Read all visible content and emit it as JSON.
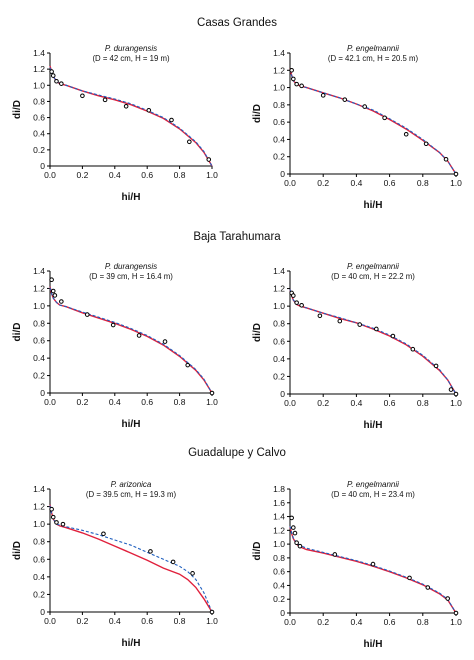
{
  "figure": {
    "sections": [
      "Casas Grandes",
      "Baja Tarahumara",
      "Guadalupe y Calvo"
    ],
    "colors": {
      "model_solid": "#e0203c",
      "model_dashed": "#1f5fbf",
      "observed": "#000000"
    }
  },
  "chart_data": [
    {
      "type": "line",
      "section": "Casas Grandes",
      "species": "P. durangensis",
      "params": "(D = 42 cm, H = 19 m)",
      "xlabel": "hi/H",
      "ylabel": "di/D",
      "xlim": [
        0,
        1
      ],
      "ylim": [
        0,
        1.4
      ],
      "xticks": [
        0.0,
        0.2,
        0.4,
        0.6,
        0.8,
        1.0
      ],
      "yticks": [
        0,
        0.2,
        0.4,
        0.6,
        0.8,
        1.0,
        1.2,
        1.4
      ],
      "grid": false,
      "observed": {
        "x": [
          0.01,
          0.02,
          0.04,
          0.07,
          0.2,
          0.34,
          0.47,
          0.61,
          0.75,
          0.86,
          0.98
        ],
        "y": [
          1.17,
          1.12,
          1.05,
          1.02,
          0.87,
          0.82,
          0.74,
          0.69,
          0.57,
          0.3,
          0.08
        ]
      },
      "series": [
        {
          "style": "solid",
          "x": [
            0,
            0.01,
            0.02,
            0.04,
            0.06,
            0.1,
            0.2,
            0.3,
            0.4,
            0.5,
            0.6,
            0.7,
            0.8,
            0.9,
            0.95,
            1.0
          ],
          "y": [
            1.24,
            1.17,
            1.11,
            1.05,
            1.02,
            1.0,
            0.93,
            0.87,
            0.82,
            0.76,
            0.68,
            0.59,
            0.46,
            0.29,
            0.17,
            0.0
          ]
        },
        {
          "style": "dashed",
          "x": [
            0,
            0.01,
            0.02,
            0.04,
            0.06,
            0.1,
            0.2,
            0.3,
            0.4,
            0.5,
            0.6,
            0.7,
            0.8,
            0.9,
            0.95,
            1.0
          ],
          "y": [
            1.22,
            1.16,
            1.11,
            1.05,
            1.02,
            1.0,
            0.93,
            0.88,
            0.83,
            0.77,
            0.69,
            0.6,
            0.47,
            0.3,
            0.18,
            0.0
          ]
        }
      ]
    },
    {
      "type": "line",
      "section": "Casas Grandes",
      "species": "P. engelmannii",
      "params": "(D = 42.1 cm, H = 20.5 m)",
      "xlabel": "hi/H",
      "ylabel": "di/D",
      "xlim": [
        0,
        1
      ],
      "ylim": [
        0,
        1.4
      ],
      "xticks": [
        0.0,
        0.2,
        0.4,
        0.6,
        0.8,
        1.0
      ],
      "yticks": [
        0,
        0.2,
        0.4,
        0.6,
        0.8,
        1.0,
        1.2,
        1.4
      ],
      "grid": false,
      "observed": {
        "x": [
          0.01,
          0.02,
          0.04,
          0.07,
          0.2,
          0.33,
          0.45,
          0.57,
          0.7,
          0.82,
          0.94,
          1.0
        ],
        "y": [
          1.2,
          1.1,
          1.04,
          1.02,
          0.91,
          0.86,
          0.78,
          0.65,
          0.46,
          0.35,
          0.17,
          0.0
        ]
      },
      "series": [
        {
          "style": "solid",
          "x": [
            0,
            0.01,
            0.02,
            0.04,
            0.06,
            0.1,
            0.2,
            0.3,
            0.4,
            0.5,
            0.6,
            0.7,
            0.8,
            0.9,
            0.95,
            1.0
          ],
          "y": [
            1.22,
            1.14,
            1.08,
            1.04,
            1.02,
            1.0,
            0.94,
            0.88,
            0.81,
            0.73,
            0.63,
            0.52,
            0.39,
            0.25,
            0.15,
            0.0
          ]
        },
        {
          "style": "dashed",
          "x": [
            0,
            0.01,
            0.02,
            0.04,
            0.06,
            0.1,
            0.2,
            0.3,
            0.4,
            0.5,
            0.6,
            0.7,
            0.8,
            0.9,
            0.95,
            1.0
          ],
          "y": [
            1.21,
            1.14,
            1.08,
            1.04,
            1.02,
            1.0,
            0.94,
            0.88,
            0.81,
            0.74,
            0.64,
            0.53,
            0.4,
            0.25,
            0.15,
            0.0
          ]
        }
      ]
    },
    {
      "type": "line",
      "section": "Baja Tarahumara",
      "species": "P. durangensis",
      "params": "(D = 39 cm, H = 16.4 m)",
      "xlabel": "hi/H",
      "ylabel": "di/D",
      "xlim": [
        0,
        1
      ],
      "ylim": [
        0,
        1.4
      ],
      "xticks": [
        0.0,
        0.2,
        0.4,
        0.6,
        0.8,
        1.0
      ],
      "yticks": [
        0,
        0.2,
        0.4,
        0.6,
        0.8,
        1.0,
        1.2,
        1.4
      ],
      "grid": false,
      "observed": {
        "x": [
          0.01,
          0.02,
          0.03,
          0.07,
          0.23,
          0.39,
          0.55,
          0.71,
          0.85,
          1.0
        ],
        "y": [
          1.3,
          1.17,
          1.12,
          1.05,
          0.9,
          0.78,
          0.66,
          0.59,
          0.32,
          0.0
        ]
      },
      "series": [
        {
          "style": "solid",
          "x": [
            0,
            0.01,
            0.02,
            0.04,
            0.06,
            0.1,
            0.2,
            0.3,
            0.4,
            0.5,
            0.6,
            0.7,
            0.8,
            0.9,
            0.95,
            1.0
          ],
          "y": [
            1.22,
            1.14,
            1.09,
            1.04,
            1.01,
            0.99,
            0.92,
            0.86,
            0.8,
            0.73,
            0.65,
            0.55,
            0.42,
            0.26,
            0.15,
            0.0
          ]
        },
        {
          "style": "dashed",
          "x": [
            0,
            0.01,
            0.02,
            0.04,
            0.06,
            0.1,
            0.2,
            0.3,
            0.4,
            0.5,
            0.6,
            0.7,
            0.8,
            0.9,
            0.95,
            1.0
          ],
          "y": [
            1.21,
            1.14,
            1.09,
            1.04,
            1.01,
            0.99,
            0.93,
            0.87,
            0.81,
            0.74,
            0.66,
            0.56,
            0.43,
            0.27,
            0.16,
            0.0
          ]
        }
      ]
    },
    {
      "type": "line",
      "section": "Baja Tarahumara",
      "species": "P. engelmannii",
      "params": "(D = 40 cm, H = 22.2 m)",
      "xlabel": "hi/H",
      "ylabel": "di/D",
      "xlim": [
        0,
        1
      ],
      "ylim": [
        0,
        1.4
      ],
      "xticks": [
        0.0,
        0.2,
        0.4,
        0.6,
        0.8,
        1.0
      ],
      "yticks": [
        0,
        0.2,
        0.4,
        0.6,
        0.8,
        1.0,
        1.2,
        1.4
      ],
      "grid": false,
      "observed": {
        "x": [
          0.01,
          0.02,
          0.04,
          0.07,
          0.18,
          0.3,
          0.42,
          0.52,
          0.62,
          0.74,
          0.88,
          0.97,
          1.0
        ],
        "y": [
          1.15,
          1.12,
          1.04,
          1.01,
          0.89,
          0.83,
          0.79,
          0.74,
          0.66,
          0.51,
          0.32,
          0.05,
          0.0
        ]
      },
      "series": [
        {
          "style": "solid",
          "x": [
            0,
            0.01,
            0.02,
            0.04,
            0.06,
            0.1,
            0.2,
            0.3,
            0.4,
            0.5,
            0.6,
            0.7,
            0.8,
            0.9,
            0.95,
            1.0
          ],
          "y": [
            1.19,
            1.12,
            1.07,
            1.02,
            1.0,
            0.98,
            0.92,
            0.86,
            0.81,
            0.74,
            0.66,
            0.56,
            0.43,
            0.27,
            0.16,
            0.0
          ]
        },
        {
          "style": "dashed",
          "x": [
            0,
            0.01,
            0.02,
            0.04,
            0.06,
            0.1,
            0.2,
            0.3,
            0.4,
            0.5,
            0.6,
            0.7,
            0.8,
            0.9,
            0.95,
            1.0
          ],
          "y": [
            1.19,
            1.12,
            1.07,
            1.03,
            1.0,
            0.98,
            0.92,
            0.87,
            0.81,
            0.75,
            0.67,
            0.57,
            0.44,
            0.28,
            0.16,
            0.0
          ]
        }
      ]
    },
    {
      "type": "line",
      "section": "Guadalupe y Calvo",
      "species": "P. arizonica",
      "params": "(D = 39.5 cm, H = 19.3 m)",
      "xlabel": "hi/H",
      "ylabel": "di/D",
      "xlim": [
        0,
        1
      ],
      "ylim": [
        0,
        1.4
      ],
      "xticks": [
        0.0,
        0.2,
        0.4,
        0.6,
        0.8,
        1.0
      ],
      "yticks": [
        0,
        0.2,
        0.4,
        0.6,
        0.8,
        1.0,
        1.2,
        1.4
      ],
      "grid": false,
      "observed": {
        "x": [
          0.01,
          0.02,
          0.04,
          0.08,
          0.33,
          0.62,
          0.76,
          0.88,
          1.0
        ],
        "y": [
          1.17,
          1.08,
          1.02,
          1.0,
          0.89,
          0.69,
          0.57,
          0.44,
          0.0
        ]
      },
      "series": [
        {
          "style": "solid",
          "x": [
            0,
            0.01,
            0.02,
            0.04,
            0.06,
            0.1,
            0.2,
            0.3,
            0.4,
            0.5,
            0.6,
            0.7,
            0.8,
            0.85,
            0.9,
            0.95,
            1.0
          ],
          "y": [
            1.22,
            1.13,
            1.06,
            1.0,
            0.98,
            0.96,
            0.9,
            0.83,
            0.75,
            0.67,
            0.59,
            0.5,
            0.43,
            0.37,
            0.28,
            0.15,
            0.0
          ]
        },
        {
          "style": "dashed",
          "x": [
            0,
            0.01,
            0.02,
            0.04,
            0.06,
            0.1,
            0.2,
            0.3,
            0.4,
            0.5,
            0.6,
            0.7,
            0.8,
            0.85,
            0.9,
            0.95,
            1.0
          ],
          "y": [
            1.21,
            1.12,
            1.06,
            1.0,
            0.99,
            0.97,
            0.93,
            0.88,
            0.82,
            0.76,
            0.68,
            0.6,
            0.52,
            0.46,
            0.37,
            0.22,
            0.0
          ]
        }
      ]
    },
    {
      "type": "line",
      "section": "Guadalupe y Calvo",
      "species": "P. engelmannii",
      "params": "(D = 40 cm, H = 23.4 m)",
      "xlabel": "hi/H",
      "ylabel": "di/D",
      "xlim": [
        0,
        1
      ],
      "ylim": [
        0,
        1.8
      ],
      "xticks": [
        0.0,
        0.2,
        0.4,
        0.6,
        0.8,
        1.0
      ],
      "yticks": [
        0,
        0.2,
        0.4,
        0.6,
        0.8,
        1.0,
        1.2,
        1.4,
        1.6,
        1.8
      ],
      "grid": false,
      "observed": {
        "x": [
          0.01,
          0.02,
          0.03,
          0.04,
          0.06,
          0.27,
          0.5,
          0.72,
          0.83,
          0.95,
          1.0
        ],
        "y": [
          1.38,
          1.24,
          1.16,
          1.02,
          0.97,
          0.85,
          0.71,
          0.51,
          0.37,
          0.21,
          0.0
        ]
      },
      "series": [
        {
          "style": "solid",
          "x": [
            0,
            0.01,
            0.02,
            0.04,
            0.06,
            0.1,
            0.2,
            0.3,
            0.4,
            0.5,
            0.6,
            0.7,
            0.8,
            0.9,
            0.95,
            1.0
          ],
          "y": [
            1.25,
            1.15,
            1.08,
            1.0,
            0.96,
            0.92,
            0.87,
            0.81,
            0.75,
            0.68,
            0.6,
            0.51,
            0.41,
            0.28,
            0.19,
            0.0
          ]
        },
        {
          "style": "dashed",
          "x": [
            0,
            0.01,
            0.02,
            0.04,
            0.06,
            0.1,
            0.2,
            0.3,
            0.4,
            0.5,
            0.6,
            0.7,
            0.8,
            0.9,
            0.95,
            1.0
          ],
          "y": [
            1.26,
            1.16,
            1.09,
            1.01,
            0.98,
            0.94,
            0.88,
            0.82,
            0.76,
            0.69,
            0.61,
            0.52,
            0.42,
            0.29,
            0.2,
            0.0
          ]
        }
      ]
    }
  ]
}
